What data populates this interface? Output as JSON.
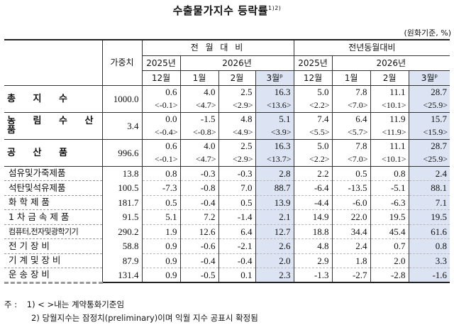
{
  "title": "수출물가지수 등락률",
  "title_sup": "1)2)",
  "unit": "(원화기준, %)",
  "headers": {
    "weight": "가중치",
    "mom": "전 월 대 비",
    "yoy": "전년동월대비",
    "y2025": "2025년",
    "y2026": "2026년",
    "dec": "12월",
    "jan": "1월",
    "feb": "2월",
    "mar": "3월",
    "mar_sup": "p"
  },
  "rows": [
    {
      "label": "총 지 수",
      "weight": "1000.0",
      "v": [
        "0.6",
        "4.0",
        "2.5",
        "16.3",
        "5.0",
        "7.8",
        "11.1",
        "28.7"
      ],
      "s": [
        "<-0.1>",
        "<4.7>",
        "<2.9>",
        "<13.6>",
        "<2.2>",
        "<7.0>",
        "<10.1>",
        "<25.9>"
      ]
    },
    {
      "label": "농 림 수 산 품",
      "weight": "3.4",
      "v": [
        "0.0",
        "-1.5",
        "4.8",
        "5.1",
        "7.4",
        "6.4",
        "11.9",
        "15.7"
      ],
      "s": [
        "<-0.4>",
        "<-0.8>",
        "<4.9>",
        "<3.9>",
        "<5.5>",
        "<5.7>",
        "<11.9>",
        "<15.9>"
      ]
    },
    {
      "label": "공 산 품",
      "weight": "996.6",
      "v": [
        "0.6",
        "4.0",
        "2.5",
        "16.3",
        "5.0",
        "7.8",
        "11.1",
        "28.7"
      ],
      "s": [
        "<-0.1>",
        "<4.7>",
        "<2.9>",
        "<13.7>",
        "<2.2>",
        "<7.0>",
        "<10.1>",
        "<25.9>"
      ]
    }
  ],
  "subrows": [
    {
      "label": "섬유및가죽제품",
      "weight": "13.8",
      "v": [
        "0.8",
        "-0.3",
        "-0.3",
        "2.8",
        "2.2",
        "0.5",
        "0.8",
        "2.4"
      ]
    },
    {
      "label": "석탄및석유제품",
      "weight": "100.5",
      "v": [
        "-7.3",
        "-0.8",
        "7.0",
        "88.7",
        "-6.4",
        "-13.5",
        "-5.1",
        "88.1"
      ]
    },
    {
      "label": "화 학 제 품",
      "weight": "181.7",
      "v": [
        "0.5",
        "-0.4",
        "0.5",
        "13.9",
        "-4.4",
        "-6.0",
        "-6.3",
        "7.1"
      ]
    },
    {
      "label": "1 차 금 속 제 품",
      "weight": "91.5",
      "v": [
        "5.1",
        "7.2",
        "-1.4",
        "2.1",
        "14.9",
        "22.0",
        "19.5",
        "19.5"
      ]
    },
    {
      "label": "컴퓨터,전자및광학기기",
      "weight": "290.2",
      "v": [
        "1.9",
        "12.6",
        "6.4",
        "12.7",
        "18.8",
        "34.4",
        "45.4",
        "61.6"
      ]
    },
    {
      "label": "전 기 장 비",
      "weight": "58.8",
      "v": [
        "0.9",
        "-0.6",
        "-2.1",
        "2.6",
        "4.8",
        "2.4",
        "0.7",
        "0.8"
      ]
    },
    {
      "label": "기 계 및 장 비",
      "weight": "87.9",
      "v": [
        "0.9",
        "-0.4",
        "-0.4",
        "2.0",
        "2.9",
        "1.8",
        "2.0",
        "3.3"
      ]
    },
    {
      "label": "운 송 장 비",
      "weight": "131.4",
      "v": [
        "0.9",
        "-0.5",
        "0.1",
        "2.3",
        "-1.3",
        "-2.7",
        "-2.8",
        "-1.6"
      ]
    }
  ],
  "notes": {
    "prefix": "주 :",
    "n1": "1) < >내는 계약통화기준임",
    "n2": "2) 당월지수는 잠정치(preliminary)이며 익월 지수 공표시 확정됨"
  }
}
